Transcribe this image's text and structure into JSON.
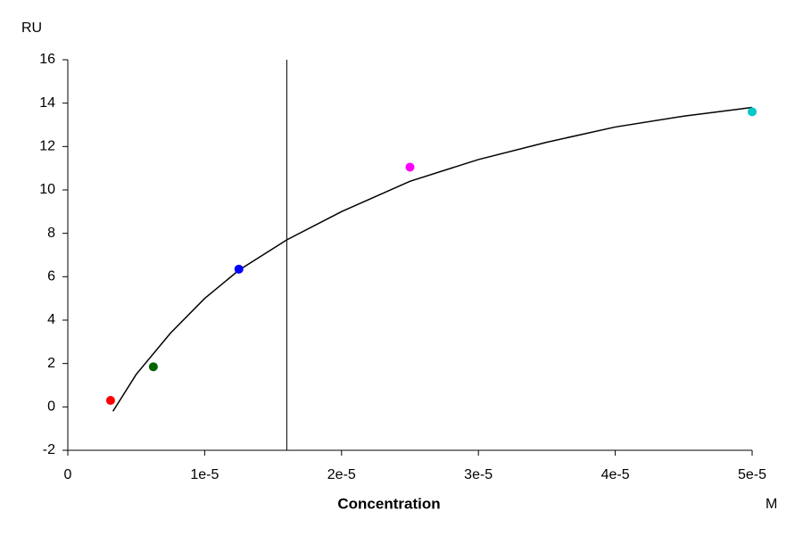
{
  "chart_data": {
    "type": "scatter",
    "y_label": "RU",
    "x_label": "Concentration",
    "x_unit": "M",
    "xlim": [
      0,
      5e-05
    ],
    "ylim": [
      -2,
      16
    ],
    "xticks": [
      0,
      {
        "value": 1e-05,
        "label": "1e-5"
      },
      {
        "value": 2e-05,
        "label": "2e-5"
      },
      {
        "value": 3e-05,
        "label": "3e-5"
      },
      {
        "value": 4e-05,
        "label": "4e-5"
      },
      {
        "value": 5e-05,
        "label": "5e-5"
      }
    ],
    "yticks": [
      -2,
      0,
      2,
      4,
      6,
      8,
      10,
      12,
      14,
      16
    ],
    "points": {
      "x": [
        3.125e-06,
        6.25e-06,
        1.25e-05,
        2.5e-05,
        5e-05
      ],
      "values": [
        0.3,
        1.85,
        6.35,
        11.05,
        13.6
      ],
      "colors": [
        "#ff0000",
        "#006400",
        "#0000ff",
        "#ff00ff",
        "#00c8c8"
      ]
    },
    "fit": {
      "color": "#000000",
      "x": [
        3.3e-06,
        5e-06,
        7.5e-06,
        1e-05,
        1.25e-05,
        1.6e-05,
        2e-05,
        2.5e-05,
        3e-05,
        3.5e-05,
        4e-05,
        4.5e-05,
        5e-05
      ],
      "values": [
        -0.2,
        1.5,
        3.4,
        5.0,
        6.3,
        7.7,
        9.0,
        10.4,
        11.4,
        12.2,
        12.9,
        13.4,
        13.8
      ]
    },
    "vline_x": 1.6e-05
  }
}
